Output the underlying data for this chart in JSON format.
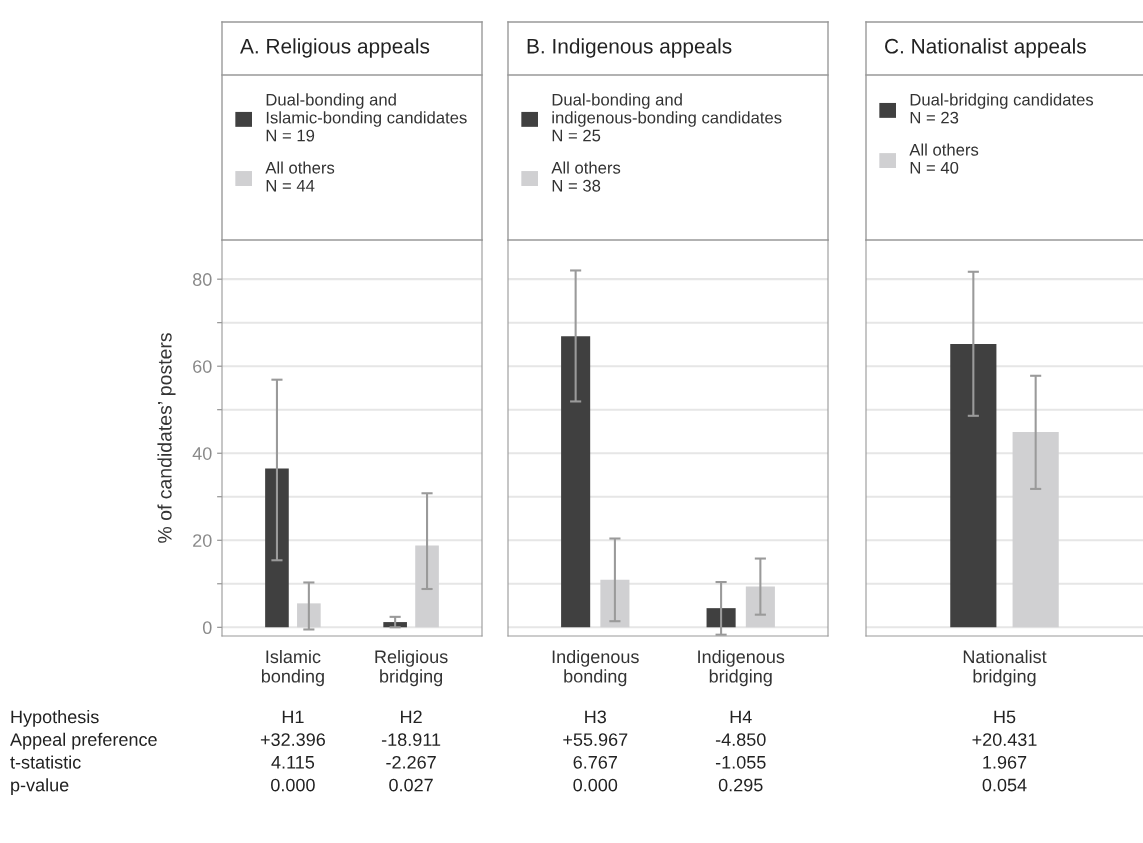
{
  "chart_data": [
    {
      "type": "bar",
      "title": "A. Religious appeals",
      "ylabel": "% of candidates’ posters",
      "categories": [
        "Islamic\nbonding",
        "Religious\nbridging"
      ],
      "series": [
        {
          "name": "Dual-bonding and\nIslamic-bonding candidates\nN = 19",
          "color": "#404040",
          "values": [
            36.5,
            1.2
          ],
          "errors": [
            [
              15.4,
              56.9
            ],
            [
              0,
              2.4
            ]
          ]
        },
        {
          "name": "All others\nN = 44",
          "color": "#d0d0d2",
          "values": [
            5.5,
            18.8
          ],
          "errors": [
            [
              -0.5,
              10.3
            ],
            [
              8.8,
              30.8
            ]
          ]
        }
      ],
      "ylim": [
        -2,
        89
      ],
      "yticks": [
        0,
        {
          "value": 10,
          "label": null
        },
        20,
        {
          "value": 30,
          "label": null
        },
        40,
        {
          "value": 50,
          "label": null
        },
        60,
        {
          "value": 70,
          "label": null
        },
        80
      ],
      "grid": "y",
      "legend": "top",
      "annotations": [
        "Hypothesis\nAppeal preference\nt-statistic\np-value",
        "H1\n+32.396\n4.115\n0.000",
        "H2\n-18.911\n-2.267\n0.027"
      ]
    },
    {
      "type": "bar",
      "title": "B. Indigenous appeals",
      "categories": [
        "Indigenous\nbonding",
        "Indigenous\nbridging"
      ],
      "series": [
        {
          "name": "Dual-bonding and\nindigenous-bonding candidates\nN = 25",
          "color": "#404040",
          "values": [
            66.9,
            4.4
          ],
          "errors": [
            [
              51.9,
              82.0
            ],
            [
              -1.7,
              10.4
            ]
          ]
        },
        {
          "name": "All others\nN = 38",
          "color": "#d0d0d2",
          "values": [
            10.9,
            9.4
          ],
          "errors": [
            [
              1.4,
              20.4
            ],
            [
              2.9,
              15.8
            ]
          ]
        }
      ],
      "ylim": [
        -2,
        89
      ],
      "yticks": [
        0,
        {
          "value": 10,
          "label": null
        },
        20,
        {
          "value": 30,
          "label": null
        },
        40,
        {
          "value": 50,
          "label": null
        },
        60,
        {
          "value": 70,
          "label": null
        },
        80
      ],
      "grid": "y",
      "legend": "top",
      "tick_labels": "x",
      "annotations": [
        "H3\n+55.967\n6.767\n0.000",
        "H4\n-4.850\n-1.055\n0.295"
      ]
    },
    {
      "type": "bar",
      "title": "C. Nationalist appeals",
      "categories": [
        "Nationalist\nbridging"
      ],
      "series": [
        {
          "name": "Dual-bridging candidates\nN = 23",
          "color": "#404040",
          "values": [
            65.1
          ],
          "errors": [
            [
              48.6,
              81.7
            ]
          ]
        },
        {
          "name": "All others\nN = 40",
          "color": "#d0d0d2",
          "values": [
            44.9
          ],
          "errors": [
            [
              31.8,
              57.8
            ]
          ]
        }
      ],
      "ylim": [
        -2,
        89
      ],
      "yticks": [
        0,
        {
          "value": 10,
          "label": null
        },
        20,
        {
          "value": 30,
          "label": null
        },
        40,
        {
          "value": 50,
          "label": null
        },
        60,
        {
          "value": 70,
          "label": null
        },
        80
      ],
      "grid": "y",
      "legend": "top",
      "tick_labels": "x",
      "annotations": [
        "H5\n+20.431\n1.967\n0.054"
      ]
    }
  ]
}
